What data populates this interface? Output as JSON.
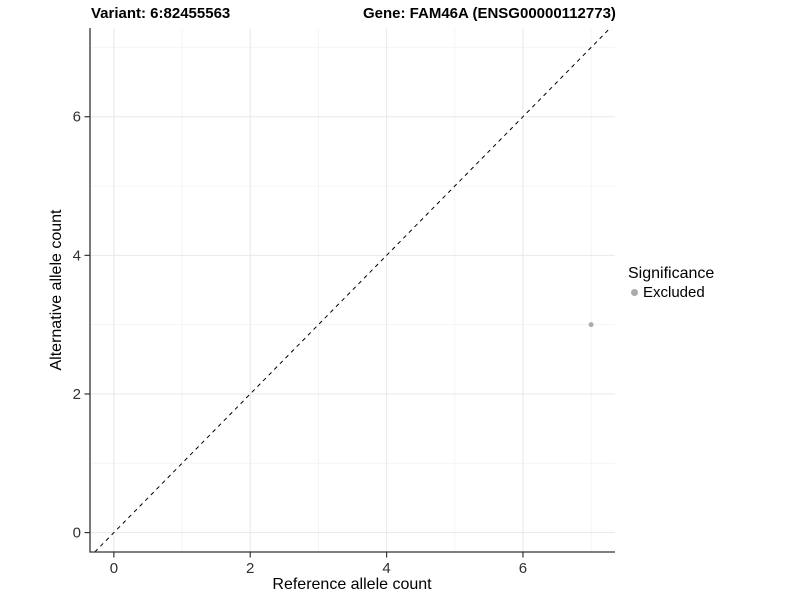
{
  "header": {
    "variant_title": "Variant: 6:82455563",
    "gene_title": "Gene: FAM46A (ENSG00000112773)"
  },
  "legend": {
    "title": "Significance",
    "items": [
      {
        "label": "Excluded",
        "color": "#ababab"
      }
    ]
  },
  "chart_data": {
    "type": "scatter",
    "title": "Variant: 6:82455563   Gene: FAM46A (ENSG00000112773)",
    "xlabel": "Reference allele count",
    "ylabel": "Alternative allele count",
    "xlim": [
      -0.35,
      7.35
    ],
    "ylim": [
      -0.28,
      7.28
    ],
    "x_ticks": [
      0,
      2,
      4,
      6
    ],
    "y_ticks": [
      0,
      2,
      4,
      6
    ],
    "x_minor": [
      1,
      3,
      5,
      7
    ],
    "y_minor": [
      1,
      3,
      5,
      7
    ],
    "grid": "major+minor",
    "legend_position": "right",
    "series": [
      {
        "name": "Excluded",
        "color": "#ababab",
        "marker_radius": 2.5,
        "points": [
          {
            "x": 7,
            "y": 3
          }
        ]
      }
    ],
    "reference_line": {
      "equation": "y = x",
      "style": "dashed",
      "color": "#000000"
    }
  },
  "style": {
    "grid_major_color": "#e8e8e8",
    "grid_minor_color": "#f4f4f4",
    "axis_line_color": "#333333",
    "tick_color": "#333333",
    "tick_label_color": "#303030",
    "background": "#ffffff"
  }
}
